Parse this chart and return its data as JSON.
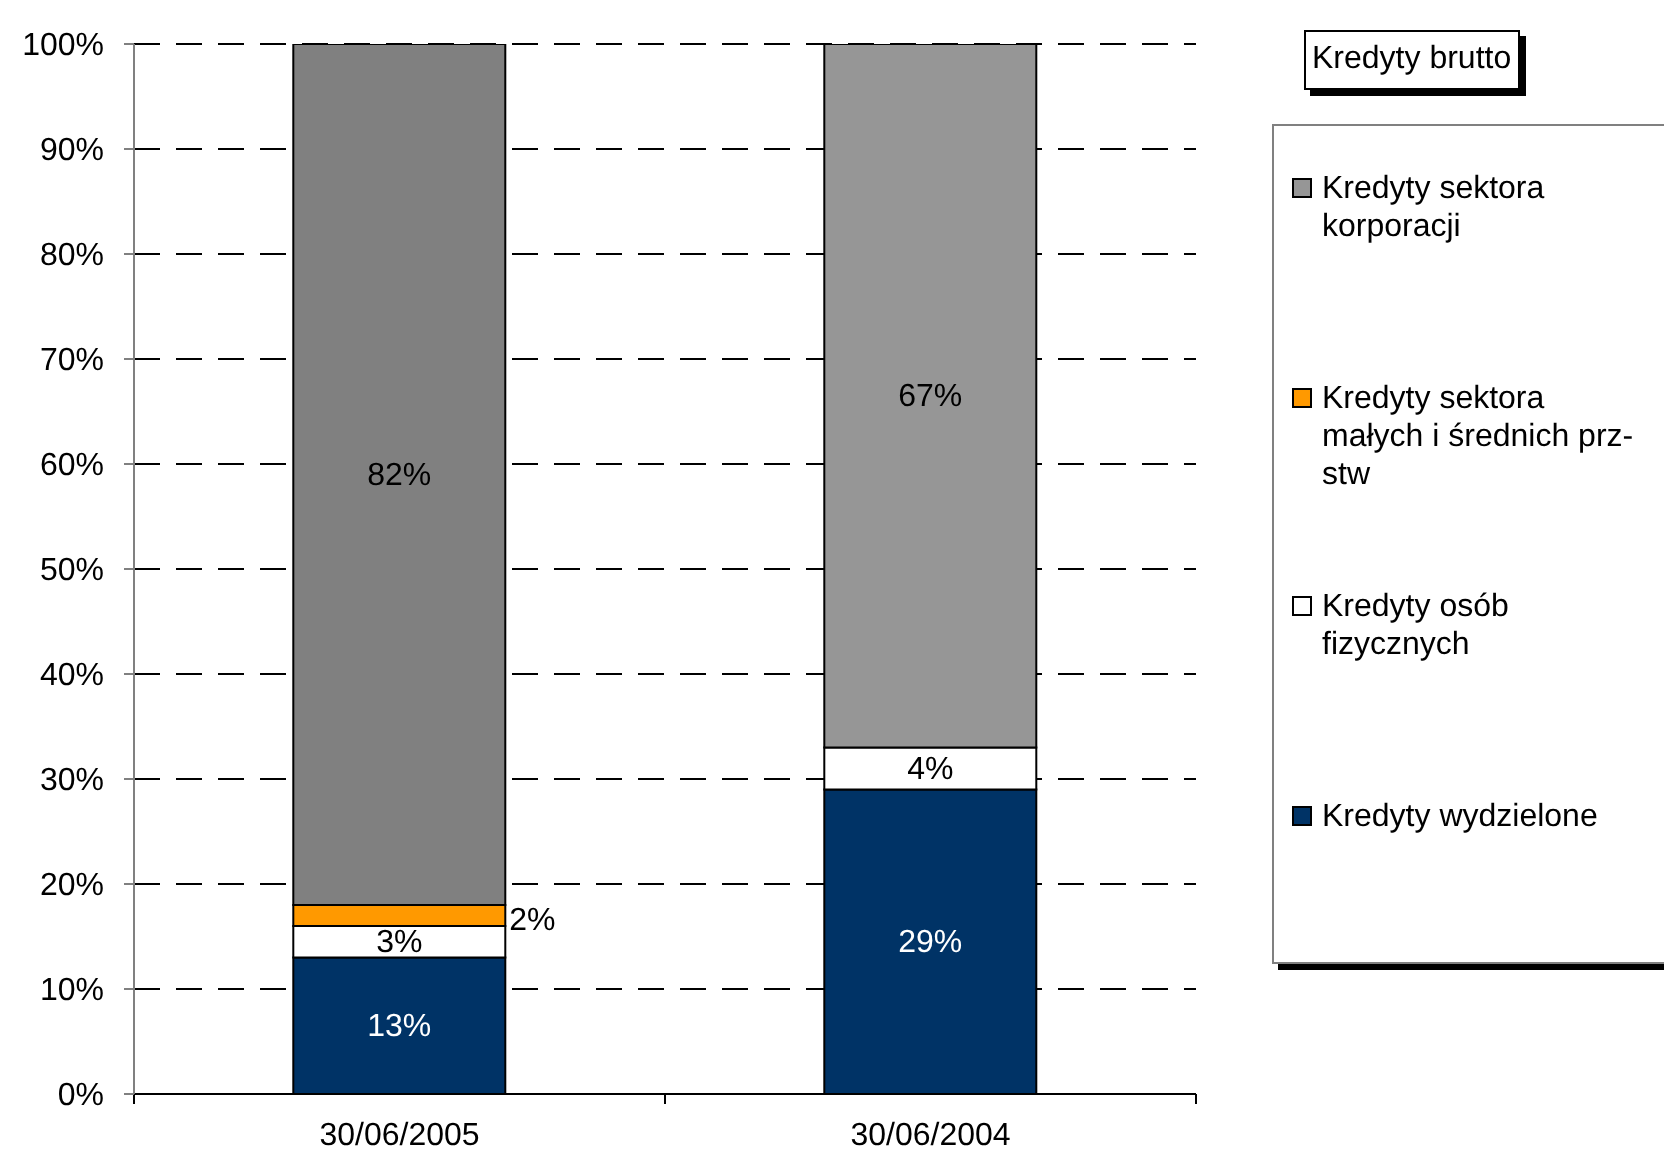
{
  "chart_data": {
    "type": "bar",
    "title": "Kredyty brutto",
    "categories": [
      "30/06/2005",
      "30/06/2004"
    ],
    "series": [
      {
        "name": "Kredyty wydzielone",
        "color": "#003366",
        "values": [
          13,
          29
        ],
        "value_labels": [
          "13%",
          "29%"
        ]
      },
      {
        "name": "Kredyty osób fizycznych",
        "color": "#ffffff",
        "values": [
          3,
          4
        ],
        "value_labels": [
          "3%",
          "4%"
        ]
      },
      {
        "name": "Kredyty sektora małych i średnich prz-stw",
        "color": "#ff9900",
        "values": [
          2,
          null
        ],
        "value_labels": [
          "2%",
          null
        ]
      },
      {
        "name": "Kredyty sektora korporacji",
        "color": "#969696",
        "colors": [
          "#808080",
          "#969696"
        ],
        "values": [
          82,
          67
        ],
        "value_labels": [
          "82%",
          "67%"
        ]
      }
    ],
    "stacked": true,
    "ylim": [
      0,
      100
    ],
    "yticks": [
      {
        "value": 0,
        "label": "0%"
      },
      {
        "value": 10,
        "label": "10%"
      },
      {
        "value": 20,
        "label": "20%"
      },
      {
        "value": 30,
        "label": "30%"
      },
      {
        "value": 40,
        "label": "40%"
      },
      {
        "value": 50,
        "label": "50%"
      },
      {
        "value": 60,
        "label": "60%"
      },
      {
        "value": 70,
        "label": "70%"
      },
      {
        "value": 80,
        "label": "80%"
      },
      {
        "value": 90,
        "label": "90%"
      },
      {
        "value": 100,
        "label": "100%"
      }
    ],
    "grid": "y",
    "legend": "right"
  }
}
